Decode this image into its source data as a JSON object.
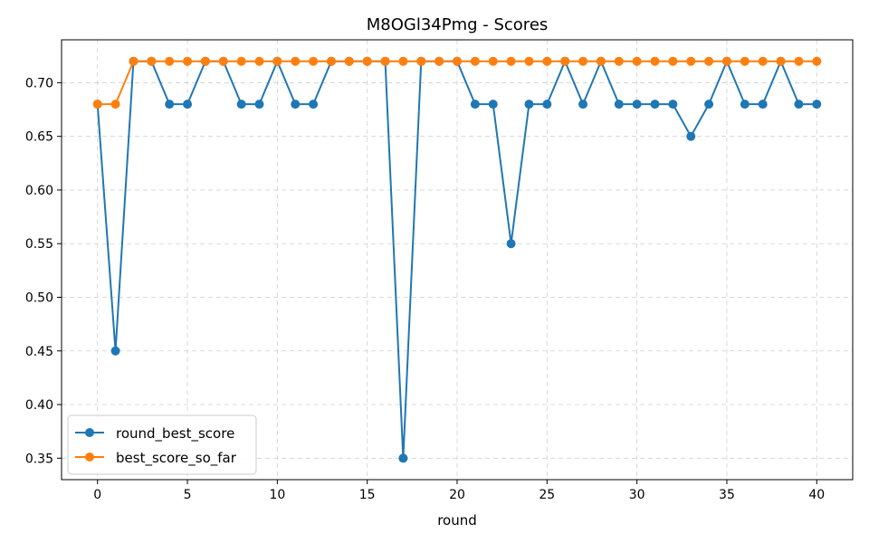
{
  "chart_data": {
    "type": "line",
    "title": "M8OGl34Pmg - Scores",
    "xlabel": "round",
    "ylabel": "",
    "x": [
      0,
      1,
      2,
      3,
      4,
      5,
      6,
      7,
      8,
      9,
      10,
      11,
      12,
      13,
      14,
      15,
      16,
      17,
      18,
      19,
      20,
      21,
      22,
      23,
      24,
      25,
      26,
      27,
      28,
      29,
      30,
      31,
      32,
      33,
      34,
      35,
      36,
      37,
      38,
      39,
      40
    ],
    "xlim": [
      -2,
      42
    ],
    "ylim": [
      0.33,
      0.74
    ],
    "xticks": [
      0,
      5,
      10,
      15,
      20,
      25,
      30,
      35,
      40
    ],
    "xtick_labels": [
      "0",
      "5",
      "10",
      "15",
      "20",
      "25",
      "30",
      "35",
      "40"
    ],
    "yticks": [
      0.35,
      0.4,
      0.45,
      0.5,
      0.55,
      0.6,
      0.65,
      0.7
    ],
    "ytick_labels": [
      "0.35",
      "0.40",
      "0.45",
      "0.50",
      "0.55",
      "0.60",
      "0.65",
      "0.70"
    ],
    "grid": true,
    "legend_position": "bottom-left",
    "series": [
      {
        "name": "round_best_score",
        "color": "#1f77b4",
        "values": [
          0.68,
          0.45,
          0.72,
          0.72,
          0.68,
          0.68,
          0.72,
          0.72,
          0.68,
          0.68,
          0.72,
          0.68,
          0.68,
          0.72,
          0.72,
          0.72,
          0.72,
          0.35,
          0.72,
          0.72,
          0.72,
          0.68,
          0.68,
          0.55,
          0.68,
          0.68,
          0.72,
          0.68,
          0.72,
          0.68,
          0.68,
          0.68,
          0.68,
          0.65,
          0.68,
          0.72,
          0.68,
          0.68,
          0.72,
          0.68,
          0.68
        ]
      },
      {
        "name": "best_score_so_far",
        "color": "#ff7f0e",
        "values": [
          0.68,
          0.68,
          0.72,
          0.72,
          0.72,
          0.72,
          0.72,
          0.72,
          0.72,
          0.72,
          0.72,
          0.72,
          0.72,
          0.72,
          0.72,
          0.72,
          0.72,
          0.72,
          0.72,
          0.72,
          0.72,
          0.72,
          0.72,
          0.72,
          0.72,
          0.72,
          0.72,
          0.72,
          0.72,
          0.72,
          0.72,
          0.72,
          0.72,
          0.72,
          0.72,
          0.72,
          0.72,
          0.72,
          0.72,
          0.72,
          0.72
        ]
      }
    ]
  }
}
